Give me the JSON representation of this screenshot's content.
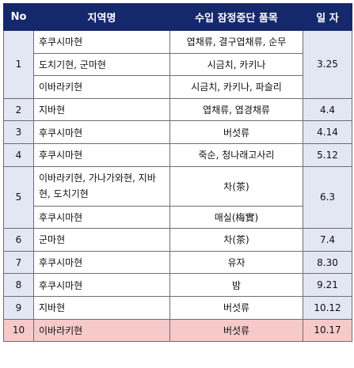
{
  "header": {
    "no": "No",
    "region": "지역명",
    "item": "수입 잠정중단 품목",
    "date": "일 자"
  },
  "rows": [
    {
      "no": "1",
      "date": "3.25",
      "sub": [
        {
          "region": "후쿠시마현",
          "item": "엽채류, 결구엽채류, 순무"
        },
        {
          "region": "도치기현, 군마현",
          "item": "시금치, 카키나"
        },
        {
          "region": "이바라키현",
          "item": "시금치, 카키나, 파슬리"
        }
      ]
    },
    {
      "no": "2",
      "date": "4.4",
      "sub": [
        {
          "region": "지바현",
          "item": "엽채류, 엽경채류"
        }
      ]
    },
    {
      "no": "3",
      "date": "4.14",
      "sub": [
        {
          "region": "후쿠시마현",
          "item": "버섯류"
        }
      ]
    },
    {
      "no": "4",
      "date": "5.12",
      "sub": [
        {
          "region": "후쿠시마현",
          "item": "죽순, 청나래고사리"
        }
      ]
    },
    {
      "no": "5",
      "date": "6.3",
      "sub": [
        {
          "region": "이바라키현, 가나가와현, 지바현, 도치기현",
          "item": "차(茶)"
        },
        {
          "region": "후쿠시마현",
          "item": "매실(梅實)"
        }
      ]
    },
    {
      "no": "6",
      "date": "7.4",
      "sub": [
        {
          "region": "군마현",
          "item": "차(茶)"
        }
      ]
    },
    {
      "no": "7",
      "date": "8.30",
      "sub": [
        {
          "region": "후쿠시마현",
          "item": "유자"
        }
      ]
    },
    {
      "no": "8",
      "date": "9.21",
      "sub": [
        {
          "region": "후쿠시마현",
          "item": "밤"
        }
      ]
    },
    {
      "no": "9",
      "date": "10.12",
      "sub": [
        {
          "region": "지바현",
          "item": "버섯류"
        }
      ]
    },
    {
      "no": "10",
      "date": "10.17",
      "sub": [
        {
          "region": "이바라키현",
          "item": "버섯류"
        }
      ]
    }
  ]
}
